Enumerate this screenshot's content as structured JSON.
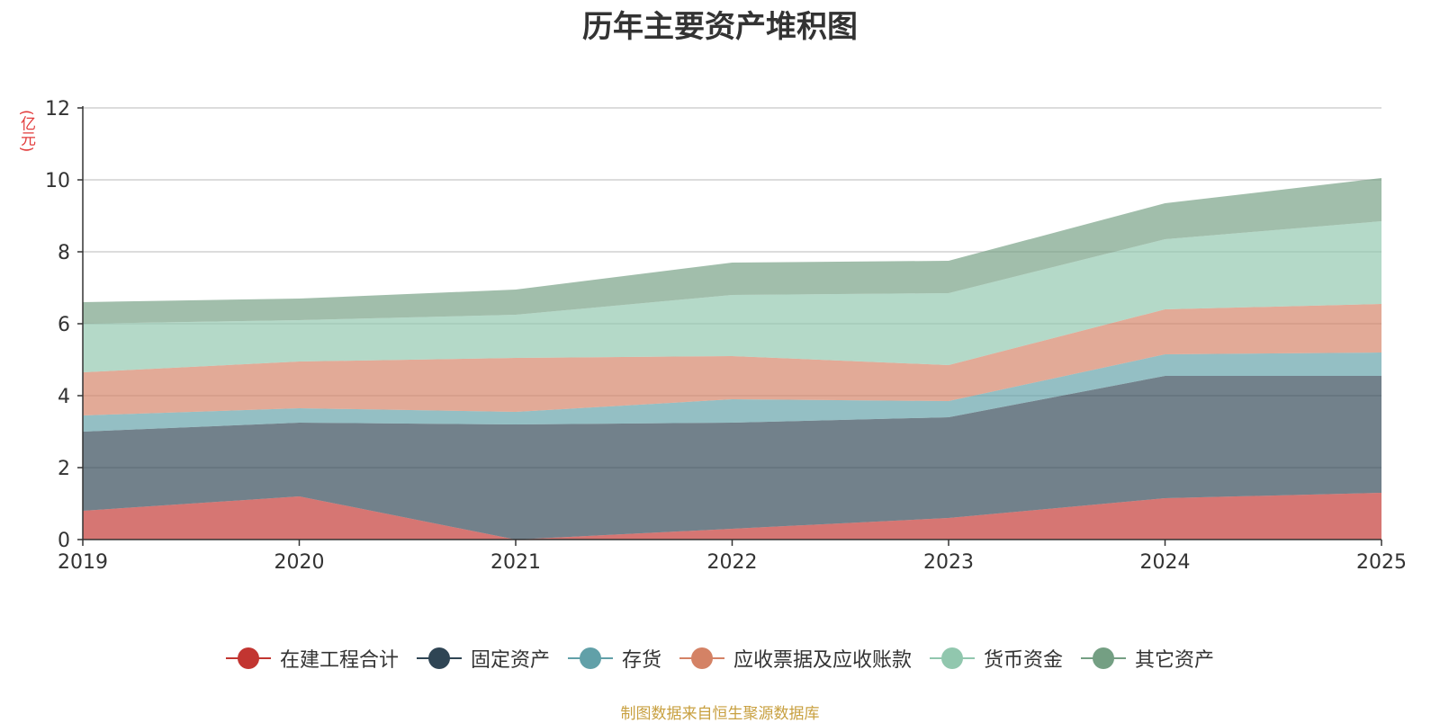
{
  "chart_data": {
    "type": "area",
    "stacked": true,
    "title": "历年主要资产堆积图",
    "ylabel": "(亿元)",
    "xlabel": "",
    "x": [
      "2019",
      "2020",
      "2021",
      "2022",
      "2023",
      "2024",
      "2025"
    ],
    "ylim": [
      0,
      12
    ],
    "yticks": [
      0,
      2,
      4,
      6,
      8,
      10,
      12
    ],
    "grid": true,
    "legend_position": "bottom",
    "series": [
      {
        "name": "在建工程合计",
        "color": "#c23531",
        "values": [
          0.8,
          1.2,
          0.0,
          0.3,
          0.6,
          1.15,
          1.3
        ]
      },
      {
        "name": "固定资产",
        "color": "#2f4554",
        "values": [
          2.2,
          2.05,
          3.2,
          2.95,
          2.8,
          3.4,
          3.25
        ]
      },
      {
        "name": "存货",
        "color": "#61a0a8",
        "values": [
          0.45,
          0.4,
          0.35,
          0.65,
          0.45,
          0.6,
          0.65
        ]
      },
      {
        "name": "应收票据及应收账款",
        "color": "#d48265",
        "values": [
          1.2,
          1.3,
          1.5,
          1.2,
          1.0,
          1.25,
          1.35
        ]
      },
      {
        "name": "货币资金",
        "color": "#91c7ae",
        "values": [
          1.35,
          1.15,
          1.2,
          1.7,
          2.0,
          1.95,
          2.3
        ]
      },
      {
        "name": "其它资产",
        "color": "#749f83",
        "values": [
          0.6,
          0.6,
          0.7,
          0.9,
          0.9,
          1.0,
          1.2
        ]
      }
    ]
  },
  "source_note": "制图数据来自恒生聚源数据库"
}
